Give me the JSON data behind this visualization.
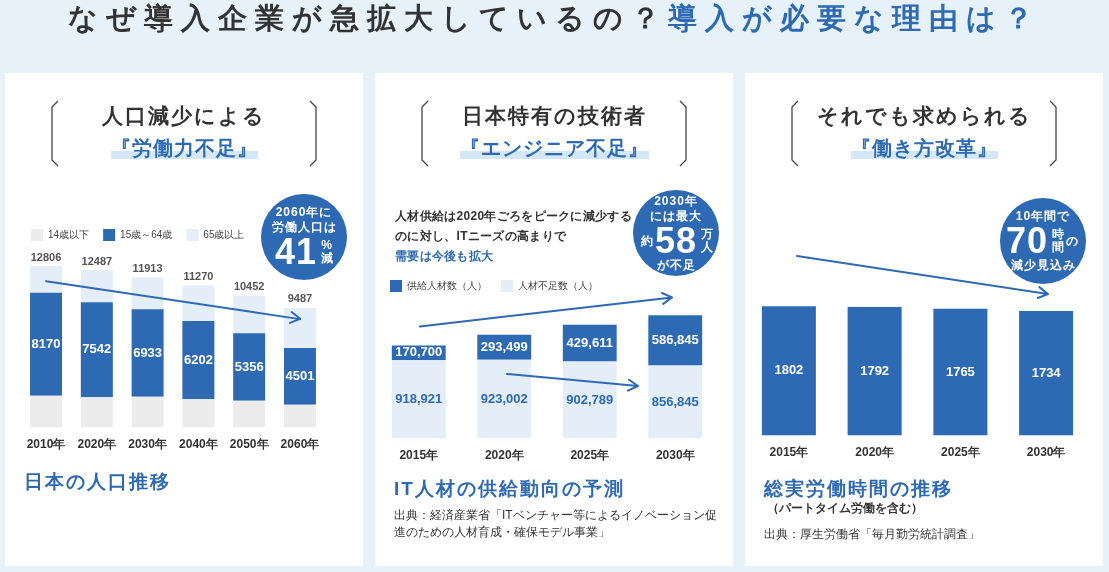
{
  "chart_data": [
    {
      "type": "other",
      "title": "なぜ導入企業が急拡大しているの？",
      "subtitle": "導入が必要な理由は？"
    },
    {
      "type": "bar",
      "title": "人口減少による",
      "subtitle": "『労働力不足』",
      "categories": [
        "2010年",
        "2020年",
        "2030年",
        "2040年",
        "2050年",
        "2060年"
      ],
      "stacked": true,
      "series": [
        {
          "name": "14歳以下",
          "color": "#ececec",
          "values": [
            2530,
            2400,
            2450,
            2250,
            2120,
            1810
          ]
        },
        {
          "name": "15歳～64歳",
          "color": "#2d6ab3",
          "values": [
            8170,
            7542,
            6933,
            6202,
            5356,
            4501
          ],
          "value_labels": [
            "8170",
            "7542",
            "6933",
            "6202",
            "5356",
            "4501"
          ]
        },
        {
          "name": "65歳以上",
          "color": "#e3eef8",
          "values": [
            2106,
            2545,
            2530,
            2818,
            2976,
            3176
          ]
        },
        {
          "type": "line",
          "x": [
            "2010年",
            "2060年"
          ],
          "values": [
            11600,
            8600
          ],
          "color": "#2d6ab3"
        }
      ],
      "totals": [
        "12806",
        "12487",
        "11913",
        "11270",
        "10452",
        "9487"
      ],
      "legend": "top left",
      "tick_labels": "x",
      "annotations": [
        "2060年に",
        "労働人口は",
        "41",
        "%減",
        "日本の人口推移"
      ]
    },
    {
      "type": "bar",
      "title": "日本特有の技術者",
      "subtitle": "『エンジニア不足』",
      "categories": [
        "2015年",
        "2020年",
        "2025年",
        "2030年"
      ],
      "stacked": true,
      "series": [
        {
          "name": "人材不足数（人）",
          "color": "#e3eef8",
          "values": [
            918921,
            923002,
            902789,
            856845
          ],
          "value_labels": [
            "918,921",
            "923,002",
            "902,789",
            "856,845"
          ]
        },
        {
          "name": "供給人材数（人）",
          "color": "#2d6ab3",
          "values": [
            170700,
            293499,
            429611,
            586845
          ],
          "value_labels": [
            "170,700",
            "293,499",
            "429,611",
            "586,845"
          ]
        }
      ],
      "legend": "top left",
      "tick_labels": "x",
      "annotations": [
        "人材供給は2020年ごろをピークに減少するのに対し、ITニーズの高まりで",
        "需要は今後も拡大",
        "2030年",
        "には最大",
        "約",
        "58",
        "万人",
        "が不足",
        "IT人材の供給動向の予測",
        "出典：経済産業省「ITベンチャー等によるイノベーション促進のための人材育成・確保モデル事業」"
      ]
    },
    {
      "type": "bar",
      "title": "それでも求められる",
      "subtitle": "『働き方改革』",
      "categories": [
        "2015年",
        "2020年",
        "2025年",
        "2030年"
      ],
      "values": [
        1802,
        1792,
        1765,
        1734
      ],
      "color": "#2d6ab3",
      "data_labels": true,
      "tick_labels": "x",
      "annotations": [
        "10年間で",
        "70",
        "時間",
        "の",
        "減少見込み",
        "総実労働時間の推移",
        "（パートタイム労働を含む）",
        "出典：厚生労働省「毎月勤労統計調査」"
      ]
    }
  ]
}
